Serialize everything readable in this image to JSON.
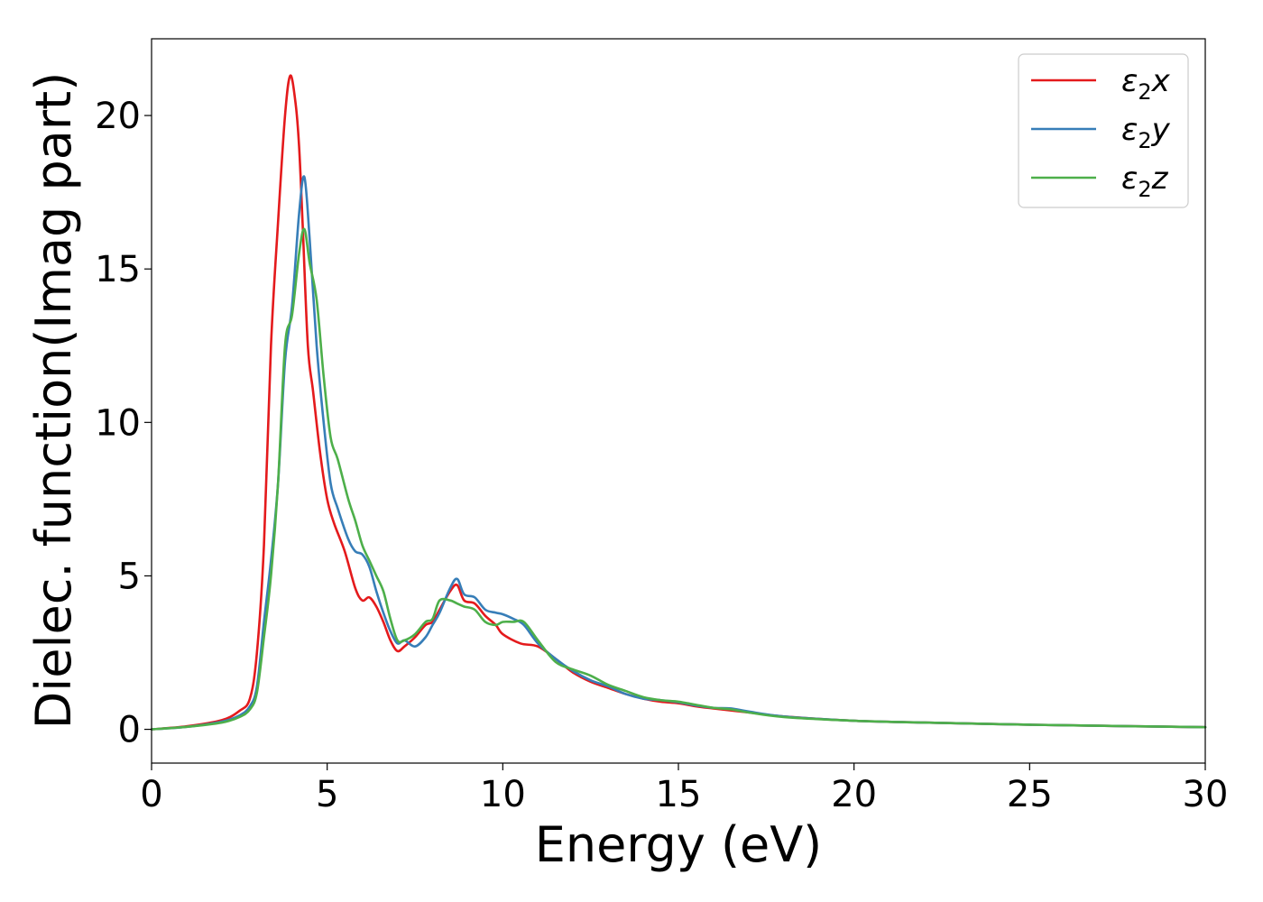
{
  "chart_data": {
    "type": "line",
    "xlabel": "Energy (eV)",
    "ylabel": "Dielec. function(Imag part)",
    "xlim": [
      0,
      30
    ],
    "ylim": [
      -1.1,
      22.5
    ],
    "xticks": [
      0,
      5,
      10,
      15,
      20,
      25,
      30
    ],
    "yticks": [
      0,
      5,
      10,
      15,
      20
    ],
    "xtick_labels": [
      "0",
      "5",
      "10",
      "15",
      "20",
      "25",
      "30"
    ],
    "ytick_labels": [
      "0",
      "5",
      "10",
      "15",
      "20"
    ],
    "grid": false,
    "legend_position": "top-right",
    "series": [
      {
        "name": "ε₂x",
        "legend_main": "ε",
        "legend_sub": "2",
        "legend_tail": "x",
        "color": "#e41a1c",
        "x": [
          0,
          1,
          2,
          2.5,
          2.8,
          3.0,
          3.2,
          3.4,
          3.6,
          3.8,
          3.95,
          4.1,
          4.2,
          4.3,
          4.45,
          4.6,
          4.8,
          5.0,
          5.2,
          5.5,
          5.8,
          6.0,
          6.2,
          6.4,
          6.6,
          6.8,
          7.0,
          7.2,
          7.5,
          7.8,
          8.0,
          8.2,
          8.5,
          8.7,
          8.9,
          9.2,
          9.5,
          9.8,
          10.0,
          10.5,
          11.0,
          11.5,
          12.0,
          12.5,
          13.0,
          13.5,
          14.0,
          14.5,
          15.0,
          15.5,
          16.0,
          17.0,
          18.0,
          20.0,
          22.0,
          25.0,
          28.0,
          30.0
        ],
        "y": [
          0,
          0.1,
          0.3,
          0.6,
          1.0,
          2.5,
          6.0,
          12.5,
          16.5,
          20.0,
          21.3,
          20.4,
          19.0,
          16.5,
          12.5,
          11.0,
          9.0,
          7.5,
          6.7,
          5.8,
          4.6,
          4.2,
          4.3,
          4.0,
          3.5,
          2.9,
          2.55,
          2.7,
          3.0,
          3.4,
          3.5,
          3.9,
          4.5,
          4.7,
          4.2,
          4.1,
          3.7,
          3.4,
          3.1,
          2.8,
          2.7,
          2.3,
          1.85,
          1.55,
          1.35,
          1.15,
          1.0,
          0.9,
          0.85,
          0.75,
          0.68,
          0.55,
          0.42,
          0.28,
          0.22,
          0.15,
          0.1,
          0.07
        ]
      },
      {
        "name": "ε₂y",
        "legend_main": "ε",
        "legend_sub": "2",
        "legend_tail": "y",
        "color": "#377eb8",
        "x": [
          0,
          1,
          2,
          2.5,
          2.8,
          3.0,
          3.2,
          3.4,
          3.6,
          3.8,
          4.0,
          4.2,
          4.35,
          4.5,
          4.7,
          4.9,
          5.1,
          5.3,
          5.6,
          5.8,
          6.0,
          6.2,
          6.4,
          6.6,
          6.8,
          7.0,
          7.2,
          7.5,
          7.8,
          8.0,
          8.2,
          8.5,
          8.7,
          8.9,
          9.2,
          9.5,
          9.8,
          10.0,
          10.3,
          10.6,
          11.0,
          11.5,
          12.0,
          12.5,
          13.0,
          13.5,
          14.0,
          14.5,
          15.0,
          15.5,
          16.0,
          16.5,
          17.0,
          18.0,
          20.0,
          22.0,
          25.0,
          28.0,
          30.0
        ],
        "y": [
          0,
          0.08,
          0.25,
          0.45,
          0.75,
          1.4,
          3.5,
          5.5,
          8.0,
          12.0,
          13.8,
          16.8,
          18.0,
          16.0,
          12.5,
          10.0,
          8.0,
          7.2,
          6.2,
          5.8,
          5.7,
          5.3,
          4.5,
          3.8,
          3.2,
          2.8,
          2.9,
          2.7,
          3.0,
          3.4,
          3.8,
          4.6,
          4.9,
          4.4,
          4.3,
          3.9,
          3.8,
          3.75,
          3.6,
          3.4,
          2.8,
          2.3,
          1.9,
          1.6,
          1.4,
          1.15,
          1.0,
          0.95,
          0.88,
          0.78,
          0.7,
          0.68,
          0.58,
          0.42,
          0.28,
          0.22,
          0.15,
          0.1,
          0.07
        ]
      },
      {
        "name": "ε₂z",
        "legend_main": "ε",
        "legend_sub": "2",
        "legend_tail": "z",
        "color": "#4daf4a",
        "x": [
          0,
          1,
          2,
          2.5,
          2.8,
          3.0,
          3.2,
          3.4,
          3.6,
          3.8,
          4.0,
          4.2,
          4.35,
          4.5,
          4.7,
          4.9,
          5.1,
          5.3,
          5.6,
          5.8,
          6.0,
          6.2,
          6.4,
          6.6,
          6.8,
          7.0,
          7.2,
          7.5,
          7.8,
          8.0,
          8.2,
          8.5,
          8.7,
          8.9,
          9.2,
          9.5,
          9.8,
          10.0,
          10.3,
          10.6,
          11.0,
          11.5,
          12.0,
          12.5,
          13.0,
          13.5,
          14.0,
          14.5,
          15.0,
          15.5,
          16.0,
          16.5,
          17.0,
          18.0,
          20.0,
          22.0,
          25.0,
          28.0,
          30.0
        ],
        "y": [
          0,
          0.08,
          0.22,
          0.4,
          0.65,
          1.2,
          3.0,
          5.0,
          8.0,
          12.5,
          13.5,
          15.5,
          16.3,
          15.2,
          14.0,
          11.5,
          9.5,
          8.8,
          7.5,
          6.8,
          6.0,
          5.5,
          5.0,
          4.5,
          3.6,
          2.9,
          2.9,
          3.1,
          3.5,
          3.6,
          4.2,
          4.2,
          4.1,
          4.0,
          3.9,
          3.5,
          3.4,
          3.5,
          3.5,
          3.5,
          2.9,
          2.2,
          1.95,
          1.75,
          1.45,
          1.25,
          1.05,
          0.95,
          0.9,
          0.8,
          0.7,
          0.65,
          0.55,
          0.4,
          0.28,
          0.22,
          0.15,
          0.1,
          0.07
        ]
      }
    ]
  }
}
